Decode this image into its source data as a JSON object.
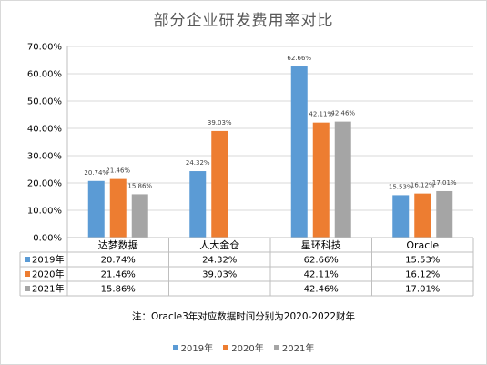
{
  "chart_data": {
    "type": "bar",
    "title": "部分企业研发费用率对比",
    "categories": [
      "达梦数据",
      "人大金仓",
      "星环科技",
      "Oracle"
    ],
    "series": [
      {
        "name": "2019年",
        "color": "#5b9bd5",
        "values": [
          20.74,
          24.32,
          62.66,
          15.53
        ],
        "labels": [
          "20.74%",
          "24.32%",
          "62.66%",
          "15.53%"
        ]
      },
      {
        "name": "2020年",
        "color": "#ed7d31",
        "values": [
          21.46,
          39.03,
          42.11,
          16.12
        ],
        "labels": [
          "21.46%",
          "39.03%",
          "42.11%",
          "16.12%"
        ]
      },
      {
        "name": "2021年",
        "color": "#a5a5a5",
        "values": [
          15.86,
          null,
          42.46,
          17.01
        ],
        "labels": [
          "15.86%",
          "",
          "42.46%",
          "17.01%"
        ]
      }
    ],
    "ylim": [
      0,
      70
    ],
    "yticks": [
      "0.00%",
      "10.00%",
      "20.00%",
      "30.00%",
      "40.00%",
      "50.00%",
      "60.00%",
      "70.00%"
    ],
    "grid": true,
    "data_table": true,
    "legend_position": "bottom",
    "note": "注：Oracle3年对应数据时间分别为2020-2022财年"
  }
}
